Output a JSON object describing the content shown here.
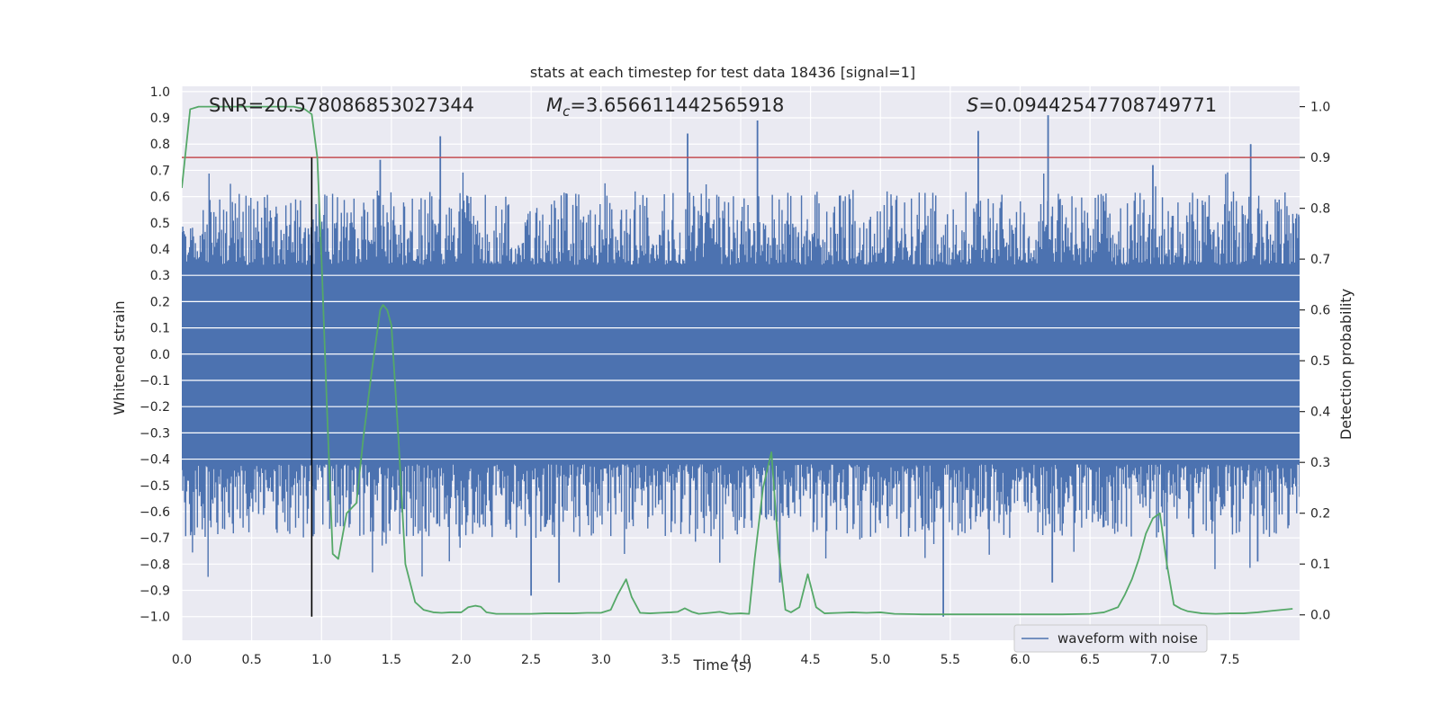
{
  "chart_data": {
    "type": "line",
    "title": "stats at each timestep for test data 18436 [signal=1]",
    "xlabel": "Time (s)",
    "ylabel_left": "Whitened strain",
    "ylabel_right": "Detection probability",
    "xlim": [
      0.0,
      8.0
    ],
    "ylim_left": [
      -1.09,
      1.02
    ],
    "ylim_right": [
      -0.05,
      1.04
    ],
    "x_ticks": [
      0.0,
      0.5,
      1.0,
      1.5,
      2.0,
      2.5,
      3.0,
      3.5,
      4.0,
      4.5,
      5.0,
      5.5,
      6.0,
      6.5,
      7.0,
      7.5
    ],
    "x_tick_labels": [
      "0.0",
      "0.5",
      "1.0",
      "1.5",
      "2.0",
      "2.5",
      "3.0",
      "3.5",
      "4.0",
      "4.5",
      "5.0",
      "5.5",
      "6.0",
      "6.5",
      "7.0",
      "7.5"
    ],
    "y_left_ticks": [
      1.0,
      0.9,
      0.8,
      0.7,
      0.6,
      0.5,
      0.4,
      0.3,
      0.2,
      0.1,
      0.0,
      -0.1,
      -0.2,
      -0.3,
      -0.4,
      -0.5,
      -0.6,
      -0.7,
      -0.8,
      -0.9,
      -1.0
    ],
    "y_left_tick_labels": [
      "1.0",
      "0.9",
      "0.8",
      "0.7",
      "0.6",
      "0.5",
      "0.4",
      "0.3",
      "0.2",
      "0.1",
      "0.0",
      "−0.1",
      "−0.2",
      "−0.3",
      "−0.4",
      "−0.5",
      "−0.6",
      "−0.7",
      "−0.8",
      "−0.9",
      "−1.0"
    ],
    "y_right_ticks": [
      1.0,
      0.9,
      0.8,
      0.7,
      0.6,
      0.5,
      0.4,
      0.3,
      0.2,
      0.1,
      0.0
    ],
    "y_right_tick_labels": [
      "1.0",
      "0.9",
      "0.8",
      "0.7",
      "0.6",
      "0.5",
      "0.4",
      "0.3",
      "0.2",
      "0.1",
      "0.0"
    ],
    "grid": true,
    "legend_placement": "lower-right",
    "annotations": {
      "snr": "SNR=20.578086853027344",
      "mc_symbol": "M",
      "mc_subscript": "c",
      "mc_value": "=3.656611442565918",
      "s_symbol": "S",
      "s_value": "=0.09442547708749771"
    },
    "threshold": {
      "axis": "right",
      "value": 0.9,
      "color": "#c44e52"
    },
    "event_marker": {
      "x": 0.93,
      "y_from": -1.0,
      "y_to": 0.9,
      "color": "#000000"
    },
    "series": [
      {
        "name": "waveform with noise",
        "axis": "left",
        "color": "#4c72b0",
        "kind": "noise",
        "band_envelope": [
          -0.42,
          0.34
        ],
        "typical_peak_range": [
          0.38,
          0.62
        ],
        "spikes": [
          {
            "x": 1.85,
            "y": 0.83
          },
          {
            "x": 3.62,
            "y": 0.84
          },
          {
            "x": 4.12,
            "y": 0.89
          },
          {
            "x": 5.7,
            "y": 0.85
          },
          {
            "x": 6.2,
            "y": 0.91
          },
          {
            "x": 7.65,
            "y": 0.8
          },
          {
            "x": 1.42,
            "y": 0.74
          },
          {
            "x": 6.95,
            "y": 0.72
          },
          {
            "x": 2.5,
            "y": -0.92
          },
          {
            "x": 2.7,
            "y": -0.87
          },
          {
            "x": 4.28,
            "y": -0.87
          },
          {
            "x": 5.45,
            "y": -1.0
          },
          {
            "x": 6.23,
            "y": -0.87
          },
          {
            "x": 7.05,
            "y": -0.82
          },
          {
            "x": 7.7,
            "y": -0.79
          }
        ]
      },
      {
        "name": "",
        "axis": "right",
        "color": "#55a868",
        "x": [
          0.0,
          0.06,
          0.12,
          0.2,
          0.3,
          0.4,
          0.5,
          0.6,
          0.7,
          0.8,
          0.88,
          0.93,
          0.97,
          1.0,
          1.04,
          1.08,
          1.12,
          1.18,
          1.25,
          1.3,
          1.36,
          1.42,
          1.44,
          1.47,
          1.5,
          1.55,
          1.6,
          1.67,
          1.73,
          1.8,
          1.86,
          1.92,
          2.0,
          2.05,
          2.1,
          2.14,
          2.18,
          2.25,
          2.35,
          2.5,
          2.6,
          2.7,
          2.8,
          2.9,
          3.0,
          3.07,
          3.12,
          3.18,
          3.22,
          3.28,
          3.35,
          3.42,
          3.5,
          3.55,
          3.6,
          3.65,
          3.7,
          3.78,
          3.85,
          3.92,
          4.0,
          4.06,
          4.1,
          4.16,
          4.22,
          4.27,
          4.32,
          4.36,
          4.42,
          4.48,
          4.54,
          4.6,
          4.7,
          4.8,
          4.9,
          5.0,
          5.1,
          5.3,
          5.5,
          5.7,
          5.9,
          6.1,
          6.3,
          6.5,
          6.6,
          6.7,
          6.75,
          6.8,
          6.85,
          6.9,
          6.95,
          7.0,
          7.05,
          7.1,
          7.15,
          7.2,
          7.3,
          7.4,
          7.5,
          7.6,
          7.7,
          7.8,
          7.95
        ],
        "y": [
          0.84,
          0.995,
          1.0,
          1.0,
          1.0,
          1.0,
          1.0,
          1.0,
          1.0,
          1.0,
          0.995,
          0.985,
          0.9,
          0.7,
          0.4,
          0.12,
          0.11,
          0.2,
          0.22,
          0.35,
          0.48,
          0.6,
          0.61,
          0.6,
          0.57,
          0.35,
          0.1,
          0.025,
          0.01,
          0.005,
          0.004,
          0.005,
          0.005,
          0.015,
          0.018,
          0.016,
          0.005,
          0.002,
          0.002,
          0.002,
          0.003,
          0.003,
          0.003,
          0.004,
          0.004,
          0.01,
          0.04,
          0.07,
          0.035,
          0.004,
          0.003,
          0.004,
          0.005,
          0.006,
          0.013,
          0.006,
          0.002,
          0.004,
          0.006,
          0.002,
          0.003,
          0.002,
          0.11,
          0.25,
          0.32,
          0.13,
          0.01,
          0.005,
          0.015,
          0.08,
          0.015,
          0.003,
          0.004,
          0.005,
          0.004,
          0.005,
          0.002,
          0.001,
          0.001,
          0.001,
          0.001,
          0.001,
          0.001,
          0.002,
          0.005,
          0.015,
          0.04,
          0.07,
          0.11,
          0.16,
          0.19,
          0.2,
          0.1,
          0.02,
          0.012,
          0.007,
          0.003,
          0.002,
          0.003,
          0.003,
          0.005,
          0.008,
          0.012
        ]
      }
    ]
  }
}
